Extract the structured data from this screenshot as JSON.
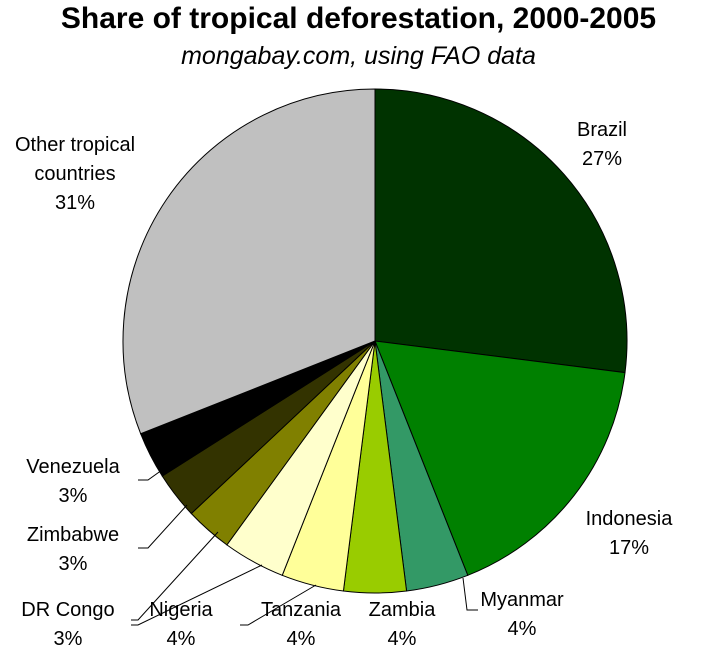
{
  "chart_data": {
    "type": "pie",
    "title": "Share of tropical deforestation, 2000-2005",
    "subtitle": "mongabay.com, using FAO data",
    "slices": [
      {
        "label": "Brazil",
        "pct_label": "27%",
        "value": 27,
        "color": "#003300"
      },
      {
        "label": "Indonesia",
        "pct_label": "17%",
        "value": 17,
        "color": "#008000"
      },
      {
        "label": "Myanmar",
        "pct_label": "4%",
        "value": 4,
        "color": "#339966"
      },
      {
        "label": "Zambia",
        "pct_label": "4%",
        "value": 4,
        "color": "#99cc00"
      },
      {
        "label": "Tanzania",
        "pct_label": "4%",
        "value": 4,
        "color": "#ffff99"
      },
      {
        "label": "Nigeria",
        "pct_label": "4%",
        "value": 4,
        "color": "#ffffcc"
      },
      {
        "label": "DR Congo",
        "pct_label": "3%",
        "value": 3,
        "color": "#808000"
      },
      {
        "label": "Zimbabwe",
        "pct_label": "3%",
        "value": 3,
        "color": "#333300"
      },
      {
        "label": "Venezuela",
        "pct_label": "3%",
        "value": 3,
        "color": "#000000"
      },
      {
        "label": "Other tropical countries",
        "label_lines": [
          "Other tropical",
          "countries"
        ],
        "pct_label": "31%",
        "value": 31,
        "color": "#c0c0c0"
      }
    ]
  }
}
